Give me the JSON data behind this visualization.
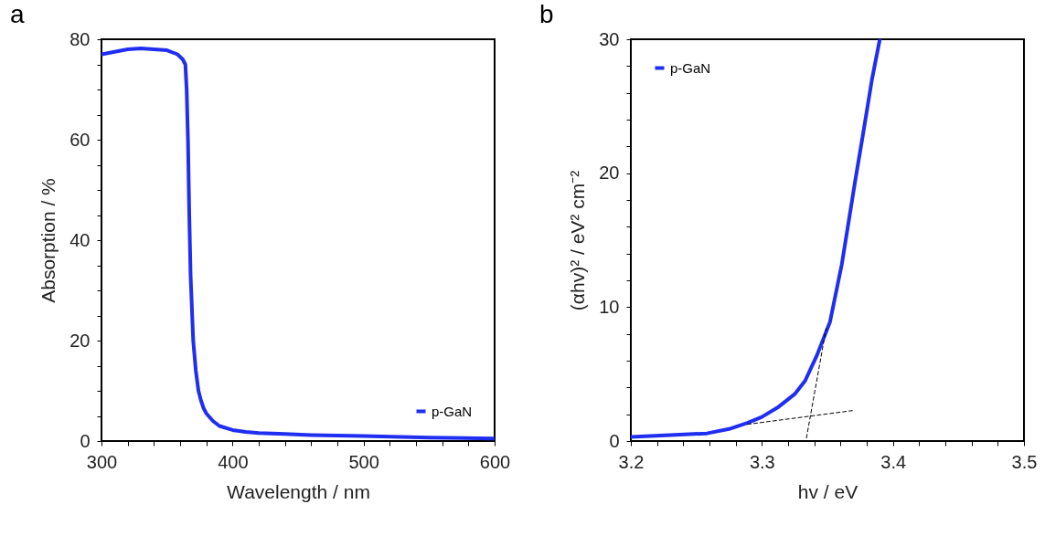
{
  "chart_data": [
    {
      "type": "line",
      "title": "a",
      "xlabel": "Wavelength / nm",
      "ylabel": "Absorption / %",
      "xlim": [
        300,
        600
      ],
      "ylim": [
        0,
        80
      ],
      "xticks": [
        300,
        {
          "value": 320,
          "label": null
        },
        {
          "value": 340,
          "label": null
        },
        {
          "value": 360,
          "label": null
        },
        {
          "value": 380,
          "label": null
        },
        400,
        {
          "value": 420,
          "label": null
        },
        {
          "value": 440,
          "label": null
        },
        {
          "value": 460,
          "label": null
        },
        {
          "value": 480,
          "label": null
        },
        500,
        {
          "value": 520,
          "label": null
        },
        {
          "value": 540,
          "label": null
        },
        {
          "value": 560,
          "label": null
        },
        {
          "value": 580,
          "label": null
        },
        600
      ],
      "yticks": [
        0,
        {
          "value": 5,
          "label": null
        },
        {
          "value": 10,
          "label": null
        },
        {
          "value": 15,
          "label": null
        },
        20,
        {
          "value": 25,
          "label": null
        },
        {
          "value": 30,
          "label": null
        },
        {
          "value": 35,
          "label": null
        },
        40,
        {
          "value": 45,
          "label": null
        },
        {
          "value": 50,
          "label": null
        },
        {
          "value": 55,
          "label": null
        },
        60,
        {
          "value": 65,
          "label": null
        },
        {
          "value": 70,
          "label": null
        },
        {
          "value": 75,
          "label": null
        },
        80
      ],
      "grid": false,
      "legend": "bottom right",
      "series": [
        {
          "name": "p-GaN",
          "color": "#1f2ef0",
          "x": [
            300,
            310,
            320,
            330,
            340,
            350,
            358,
            362,
            364,
            365,
            366,
            367,
            368,
            370,
            372,
            374,
            376,
            378,
            380,
            385,
            390,
            400,
            410,
            420,
            440,
            460,
            500,
            550,
            600
          ],
          "values": [
            77,
            77.5,
            78,
            78.2,
            78,
            77.8,
            77,
            76,
            75,
            70,
            60,
            45,
            33,
            20,
            14,
            10,
            8,
            6.5,
            5.5,
            4,
            3,
            2.2,
            1.8,
            1.6,
            1.4,
            1.2,
            1,
            0.7,
            0.5
          ]
        }
      ]
    },
    {
      "type": "line",
      "title": "b",
      "xlabel": "hv / eV",
      "ylabel": "(αhv)² / eV² cm⁻²",
      "xlim": [
        3.2,
        3.5
      ],
      "ylim": [
        0,
        30
      ],
      "xticks": [
        3.2,
        {
          "value": 3.22,
          "label": null
        },
        {
          "value": 3.24,
          "label": null
        },
        {
          "value": 3.26,
          "label": null
        },
        {
          "value": 3.28,
          "label": null
        },
        3.3,
        {
          "value": 3.32,
          "label": null
        },
        {
          "value": 3.34,
          "label": null
        },
        {
          "value": 3.36,
          "label": null
        },
        {
          "value": 3.38,
          "label": null
        },
        3.4,
        {
          "value": 3.42,
          "label": null
        },
        {
          "value": 3.44,
          "label": null
        },
        {
          "value": 3.46,
          "label": null
        },
        {
          "value": 3.48,
          "label": null
        },
        3.5
      ],
      "yticks": [
        0,
        {
          "value": 2,
          "label": null
        },
        {
          "value": 4,
          "label": null
        },
        {
          "value": 6,
          "label": null
        },
        {
          "value": 8,
          "label": null
        },
        10,
        {
          "value": 12,
          "label": null
        },
        {
          "value": 14,
          "label": null
        },
        {
          "value": 16,
          "label": null
        },
        {
          "value": 18,
          "label": null
        },
        20,
        {
          "value": 22,
          "label": null
        },
        {
          "value": 24,
          "label": null
        },
        {
          "value": 26,
          "label": null
        },
        {
          "value": 28,
          "label": null
        },
        30
      ],
      "grid": false,
      "legend": "top left",
      "series": [
        {
          "name": "p-GaN",
          "color": "#1f2ef0",
          "x": [
            3.2,
            3.23,
            3.258,
            3.275,
            3.289,
            3.3,
            3.312,
            3.325,
            3.333,
            3.342,
            3.352,
            3.361,
            3.371,
            3.378,
            3.384,
            3.39
          ],
          "values": [
            0.3,
            0.45,
            0.57,
            0.9,
            1.36,
            1.8,
            2.5,
            3.5,
            4.5,
            6.4,
            8.9,
            13.2,
            19.3,
            23.4,
            27,
            30
          ]
        },
        {
          "type": "line",
          "color": "#000000",
          "line_style": "dashed",
          "x": [
            3.334,
            3.349
          ],
          "values": [
            0.23,
            8.4
          ]
        },
        {
          "type": "line",
          "color": "#000000",
          "line_style": "dashed",
          "x": [
            3.289,
            3.369
          ],
          "values": [
            1.25,
            2.27
          ]
        }
      ]
    }
  ]
}
